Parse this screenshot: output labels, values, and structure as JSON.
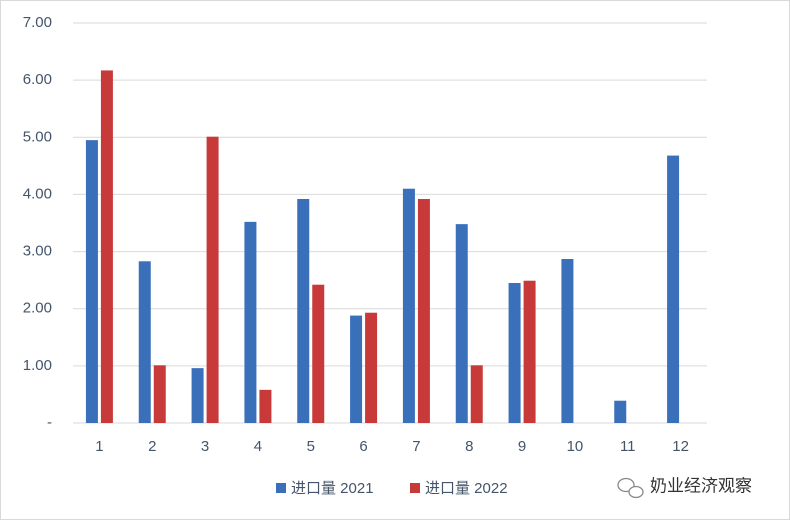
{
  "chart_data": {
    "type": "bar",
    "categories": [
      "1",
      "2",
      "3",
      "4",
      "5",
      "6",
      "7",
      "8",
      "9",
      "10",
      "11",
      "12"
    ],
    "series": [
      {
        "name": "进口量 2021",
        "color": "#3a6fba",
        "values": [
          4.95,
          2.83,
          0.96,
          3.52,
          3.92,
          1.88,
          4.1,
          3.48,
          2.45,
          2.87,
          0.39,
          4.68
        ]
      },
      {
        "name": "进口量 2022",
        "color": "#c83a3a",
        "values": [
          6.17,
          1.01,
          5.01,
          0.58,
          2.42,
          1.93,
          3.92,
          1.01,
          2.49,
          null,
          null,
          null
        ]
      }
    ],
    "ylim": [
      0,
      7
    ],
    "yticks": [
      {
        "value": 0,
        "label": "-"
      },
      {
        "value": 1,
        "label": "1.00"
      },
      {
        "value": 2,
        "label": "2.00"
      },
      {
        "value": 3,
        "label": "3.00"
      },
      {
        "value": 4,
        "label": "4.00"
      },
      {
        "value": 5,
        "label": "5.00"
      },
      {
        "value": 6,
        "label": "6.00"
      },
      {
        "value": 7,
        "label": "7.00"
      }
    ],
    "grid": true,
    "legend": "bottom",
    "watermark": "奶业经济观察"
  }
}
